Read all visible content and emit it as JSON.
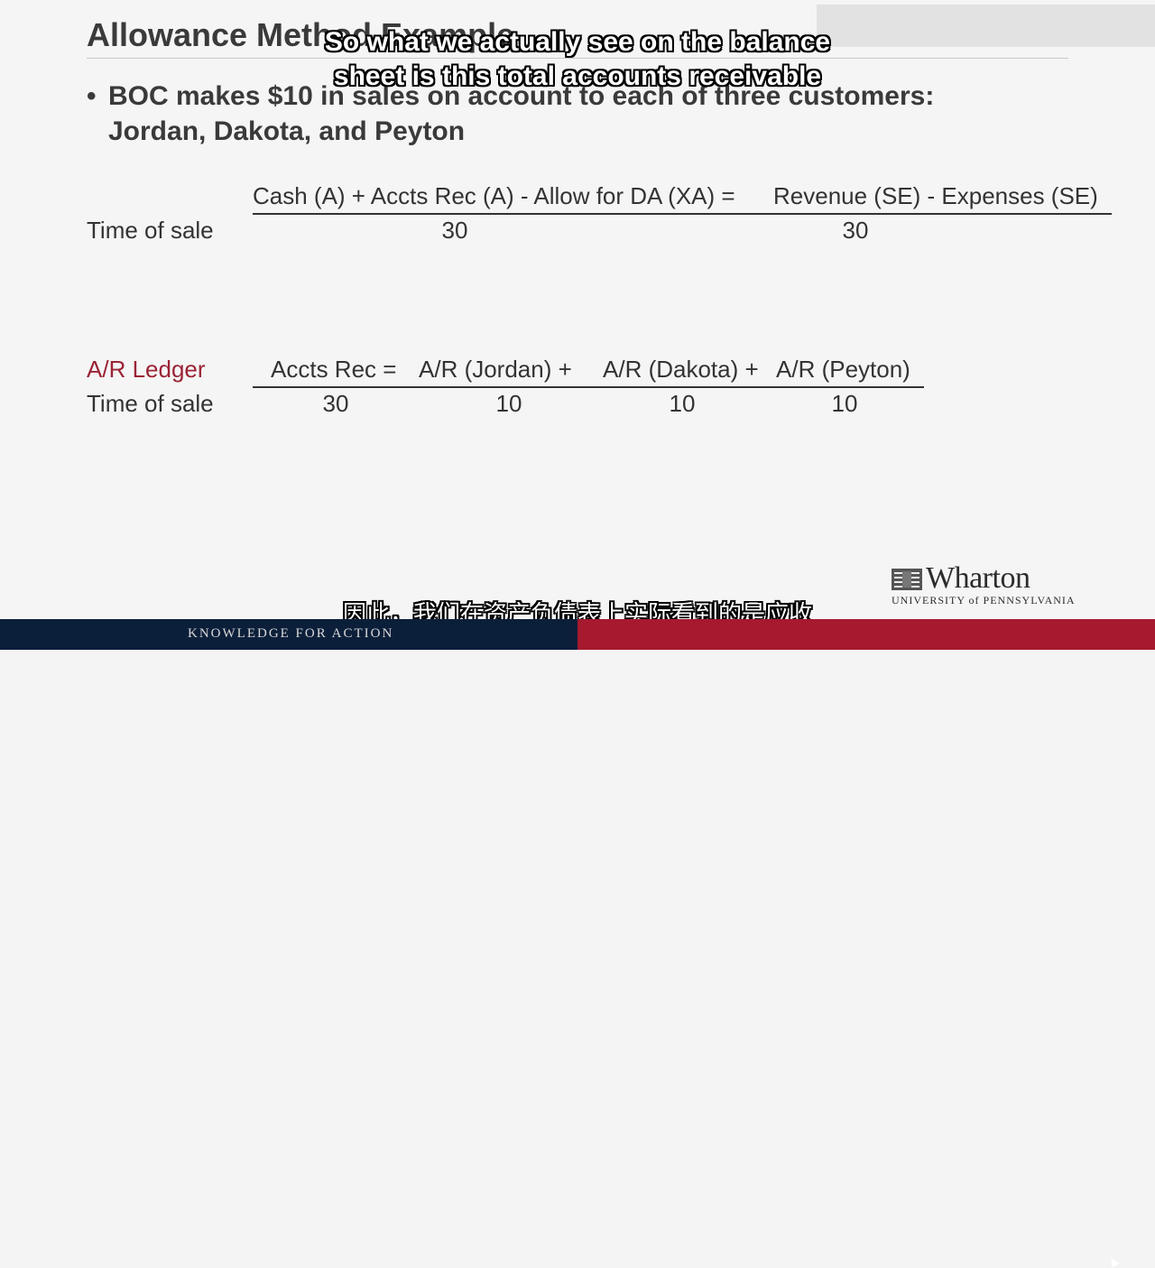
{
  "slide": {
    "title": "Allowance Method Example",
    "bullet": {
      "symbol": "•",
      "line1": "BOC makes $10 in sales on account to each of three customers:",
      "line2": "Jordan, Dakota, and Peyton"
    }
  },
  "equation_table": {
    "header_left": "Cash (A) + Accts Rec (A) - Allow for DA (XA) =",
    "header_right": "Revenue (SE) - Expenses (SE)",
    "row_label": "Time of sale",
    "accts_rec_value": "30",
    "revenue_value": "30"
  },
  "ledger_table": {
    "label": "A/R Ledger",
    "headers": [
      "Accts Rec =",
      "A/R (Jordan) +",
      "A/R (Dakota) +",
      "A/R (Peyton)"
    ],
    "row_label": "Time of sale",
    "values": [
      "30",
      "10",
      "10",
      "10"
    ]
  },
  "subtitles": {
    "english_line1": "So what we actually see on the balance",
    "english_line2": "sheet is this total accounts receivable",
    "chinese": "因此，我们在资产负债表上实际看到的是应收"
  },
  "logo": {
    "word": "Wharton",
    "subtitle": "UNIVERSITY of PENNSYLVANIA"
  },
  "footer": {
    "tagline": "KNOWLEDGE FOR ACTION"
  },
  "colors": {
    "accent_red": "#9b2335",
    "footer_navy": "#0b1f3a",
    "footer_red": "#a6192e"
  }
}
